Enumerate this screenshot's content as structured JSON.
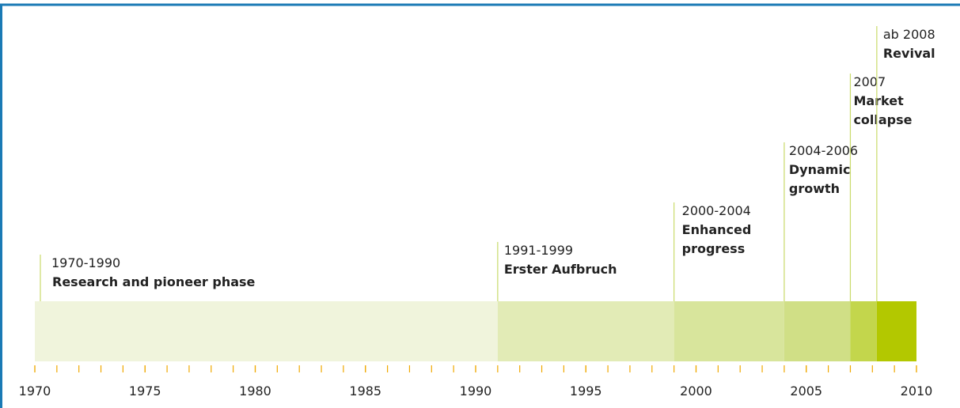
{
  "timeline": {
    "xlim": [
      1970,
      2010
    ],
    "xticks": [
      1970,
      1975,
      1980,
      1985,
      1990,
      1995,
      2000,
      2005,
      2010
    ],
    "phases": [
      {
        "period": "1970-1990",
        "name": "Research and pioneer phase",
        "start": 1970,
        "end": 1991,
        "color": "#f0f4dc"
      },
      {
        "period": "1991-1999",
        "name": "Erster Aufbruch",
        "start": 1991,
        "end": 1999,
        "color": "#e2ebb6"
      },
      {
        "period": "2000-2004",
        "name": "Enhanced progress",
        "start": 1999,
        "end": 2004,
        "color": "#d8e59c"
      },
      {
        "period": "2004-2006",
        "name": "Dynamic growth",
        "start": 2004,
        "end": 2007,
        "color": "#d0df86"
      },
      {
        "period": "2007",
        "name": "Market collapse",
        "start": 2007,
        "end": 2008.2,
        "color": "#c3d64c"
      },
      {
        "period": "ab 2008",
        "name": "Revival",
        "start": 2008.2,
        "end": 2010,
        "color": "#b3c800"
      }
    ]
  }
}
